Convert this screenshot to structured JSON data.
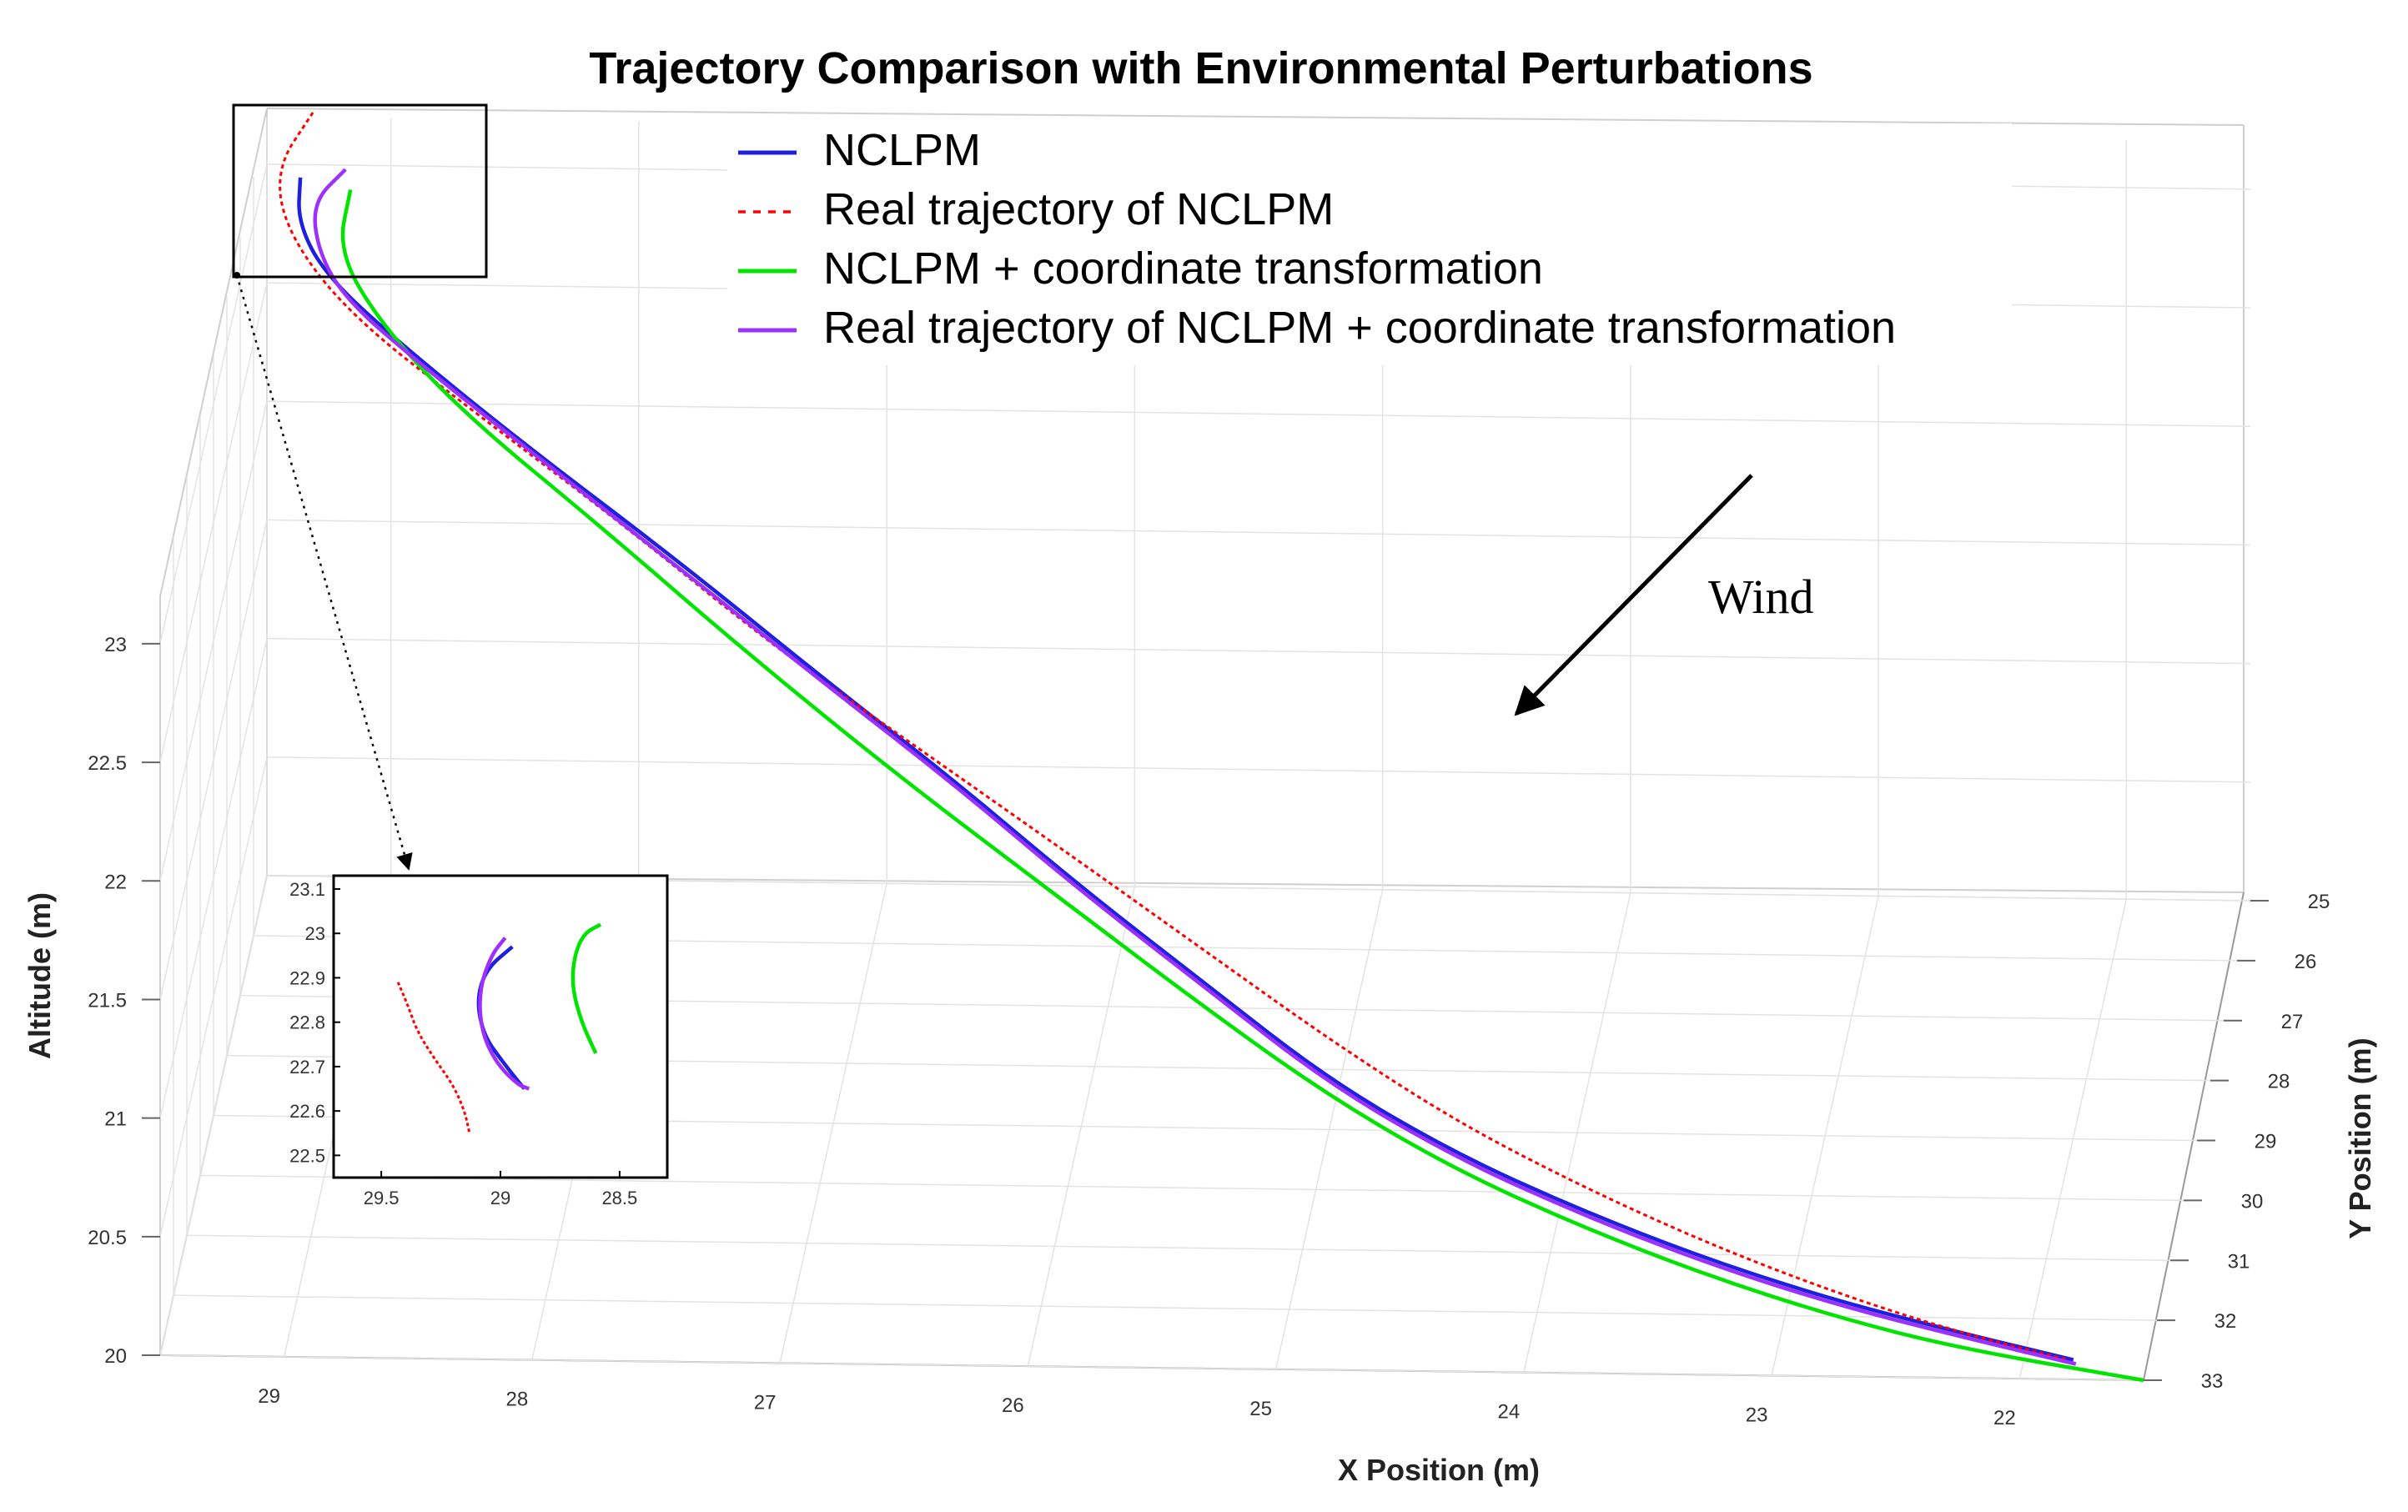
{
  "chart_data": {
    "type": "line",
    "title": "Trajectory Comparison with Environmental Perturbations",
    "xlabel": "X Position (m)",
    "ylabel": "Y Position (m)",
    "zlabel": "Altitude (m)",
    "x_ticks": [
      "29",
      "28",
      "27",
      "26",
      "25",
      "24",
      "23",
      "22"
    ],
    "y_ticks": [
      "25",
      "26",
      "27",
      "28",
      "29",
      "30",
      "31",
      "32",
      "33"
    ],
    "z_ticks": [
      "20",
      "20.5",
      "21",
      "21.5",
      "22",
      "22.5",
      "23"
    ],
    "xlim": [
      29.5,
      21.5
    ],
    "ylim": [
      25,
      33
    ],
    "zlim": [
      20,
      23.2
    ],
    "grid": true,
    "legend_position": "top-right",
    "series": [
      {
        "name": "NCLPM",
        "color": "#1f1fe0",
        "style": "solid",
        "points": [
          [
            29.1,
            22.96
          ],
          [
            29.11,
            22.85
          ],
          [
            29.0,
            22.72
          ],
          [
            28.7,
            22.55
          ],
          [
            28.2,
            22.3
          ],
          [
            27.6,
            22.02
          ],
          [
            27.0,
            21.72
          ],
          [
            26.5,
            21.48
          ],
          [
            26.0,
            21.22
          ],
          [
            25.5,
            20.98
          ],
          [
            25.0,
            20.74
          ],
          [
            24.5,
            20.56
          ],
          [
            24.0,
            20.42
          ],
          [
            23.5,
            20.3
          ],
          [
            23.0,
            20.2
          ],
          [
            22.5,
            20.12
          ],
          [
            22.03,
            20.05
          ]
        ]
      },
      {
        "name": "Real trajectory of NCLPM",
        "color": "#ff0000",
        "style": "dashed",
        "points": [
          [
            29.05,
            23.12
          ],
          [
            29.2,
            22.98
          ],
          [
            29.15,
            22.82
          ],
          [
            28.9,
            22.62
          ],
          [
            28.4,
            22.38
          ],
          [
            27.8,
            22.1
          ],
          [
            27.2,
            21.8
          ],
          [
            26.6,
            21.54
          ],
          [
            26.0,
            21.28
          ],
          [
            25.5,
            21.06
          ],
          [
            25.0,
            20.84
          ],
          [
            24.5,
            20.64
          ],
          [
            24.0,
            20.48
          ],
          [
            23.5,
            20.34
          ],
          [
            23.0,
            20.22
          ],
          [
            22.5,
            20.12
          ],
          [
            22.05,
            20.05
          ]
        ]
      },
      {
        "name": "NCLPM + coordinate transformation",
        "color": "#00e400",
        "style": "solid",
        "points": [
          [
            28.9,
            22.93
          ],
          [
            28.95,
            22.78
          ],
          [
            28.78,
            22.6
          ],
          [
            28.45,
            22.38
          ],
          [
            27.9,
            22.1
          ],
          [
            27.3,
            21.78
          ],
          [
            26.7,
            21.48
          ],
          [
            26.1,
            21.2
          ],
          [
            25.5,
            20.92
          ],
          [
            25.0,
            20.7
          ],
          [
            24.5,
            20.52
          ],
          [
            24.0,
            20.38
          ],
          [
            23.5,
            20.26
          ],
          [
            23.0,
            20.16
          ],
          [
            22.5,
            20.08
          ],
          [
            21.75,
            20.0
          ]
        ]
      },
      {
        "name": "Real trajectory of NCLPM + coordinate transformation",
        "color": "#9b30ff",
        "style": "solid",
        "points": [
          [
            28.92,
            22.98
          ],
          [
            29.05,
            22.9
          ],
          [
            29.03,
            22.78
          ],
          [
            28.92,
            22.66
          ],
          [
            28.62,
            22.5
          ],
          [
            28.15,
            22.27
          ],
          [
            27.55,
            21.98
          ],
          [
            27.0,
            21.71
          ],
          [
            26.5,
            21.47
          ],
          [
            26.0,
            21.21
          ],
          [
            25.5,
            20.97
          ],
          [
            25.0,
            20.73
          ],
          [
            24.5,
            20.55
          ],
          [
            24.0,
            20.41
          ],
          [
            23.5,
            20.29
          ],
          [
            23.0,
            20.19
          ],
          [
            22.5,
            20.11
          ],
          [
            22.02,
            20.04
          ]
        ]
      }
    ],
    "inset": {
      "x_ticks": [
        "29.5",
        "29",
        "28.5"
      ],
      "y_ticks": [
        "22.5",
        "22.6",
        "22.7",
        "22.8",
        "22.9",
        "23",
        "23.1"
      ],
      "xlim": [
        29.7,
        28.3
      ],
      "ylim": [
        22.45,
        23.13
      ],
      "series": [
        {
          "name": "NCLPM",
          "points": [
            [
              28.95,
              22.97
            ],
            [
              29.06,
              22.92
            ],
            [
              29.1,
              22.85
            ],
            [
              29.07,
              22.77
            ],
            [
              28.99,
              22.71
            ],
            [
              28.9,
              22.65
            ]
          ]
        },
        {
          "name": "Real trajectory of NCLPM",
          "points": [
            [
              29.43,
              22.89
            ],
            [
              29.39,
              22.84
            ],
            [
              29.35,
              22.78
            ],
            [
              29.28,
              22.72
            ],
            [
              29.2,
              22.66
            ],
            [
              29.15,
              22.6
            ],
            [
              29.13,
              22.55
            ]
          ]
        },
        {
          "name": "NCLPM + coordinate transformation",
          "points": [
            [
              28.58,
              23.02
            ],
            [
              28.65,
              23.0
            ],
            [
              28.69,
              22.95
            ],
            [
              28.7,
              22.88
            ],
            [
              28.66,
              22.8
            ],
            [
              28.6,
              22.73
            ]
          ]
        },
        {
          "name": "Real trajectory of NCLPM + coordinate transformation",
          "points": [
            [
              28.98,
              22.99
            ],
            [
              29.04,
              22.95
            ],
            [
              29.09,
              22.87
            ],
            [
              29.08,
              22.78
            ],
            [
              29.02,
              22.71
            ],
            [
              28.93,
              22.66
            ],
            [
              28.88,
              22.65
            ]
          ]
        }
      ]
    },
    "annotation": "Wind"
  }
}
